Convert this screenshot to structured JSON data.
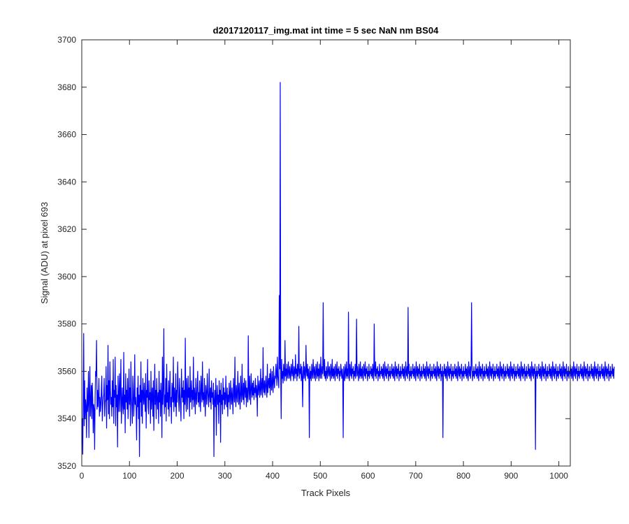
{
  "chart_data": {
    "type": "line",
    "title": "d2017120117_img.mat int time = 5 sec  NaN nm BS04",
    "xlabel": "Track Pixels",
    "ylabel": "Signal (ADU) at pixel 693",
    "xlim": [
      0,
      1024
    ],
    "ylim": [
      3520,
      3700
    ],
    "xticks": [
      "0",
      "100",
      "200",
      "300",
      "400",
      "500",
      "600",
      "700",
      "800",
      "900",
      "1000"
    ],
    "yticks": [
      "3520",
      "3540",
      "3560",
      "3580",
      "3600",
      "3620",
      "3640",
      "3660",
      "3680",
      "3700"
    ],
    "grid": false,
    "line_color": "#0000ff",
    "series": [
      {
        "values": [
          3540,
          3525,
          3549,
          3576,
          3537,
          3556,
          3540,
          3548,
          3545,
          3532,
          3553,
          3543,
          3547,
          3560,
          3532,
          3550,
          3562,
          3541,
          3547,
          3554,
          3540,
          3555,
          3548,
          3534,
          3546,
          3544,
          3527,
          3549,
          3560,
          3558,
          3573,
          3544,
          3552,
          3545,
          3550,
          3557,
          3541,
          3549,
          3543,
          3546,
          3552,
          3558,
          3539,
          3545,
          3549,
          3550,
          3557,
          3541,
          3547,
          3548,
          3562,
          3536,
          3554,
          3548,
          3571,
          3542,
          3556,
          3540,
          3564,
          3552,
          3546,
          3549,
          3541,
          3556,
          3545,
          3565,
          3538,
          3552,
          3549,
          3566,
          3537,
          3554,
          3545,
          3550,
          3528,
          3558,
          3543,
          3549,
          3559,
          3543,
          3552,
          3565,
          3538,
          3546,
          3553,
          3545,
          3542,
          3568,
          3544,
          3550,
          3534,
          3559,
          3547,
          3552,
          3544,
          3557,
          3540,
          3548,
          3561,
          3546,
          3553,
          3537,
          3564,
          3549,
          3545,
          3538,
          3558,
          3552,
          3541,
          3547,
          3567,
          3546,
          3549,
          3543,
          3531,
          3553,
          3545,
          3558,
          3540,
          3550,
          3524,
          3554,
          3547,
          3564,
          3541,
          3552,
          3538,
          3557,
          3550,
          3546,
          3555,
          3548,
          3543,
          3559,
          3536,
          3552,
          3549,
          3565,
          3545,
          3542,
          3556,
          3548,
          3551,
          3538,
          3560,
          3544,
          3549,
          3553,
          3541,
          3556,
          3535,
          3548,
          3563,
          3546,
          3552,
          3540,
          3557,
          3549,
          3544,
          3551,
          3538,
          3560,
          3547,
          3552,
          3541,
          3555,
          3549,
          3532,
          3566,
          3546,
          3553,
          3578,
          3542,
          3550,
          3545,
          3557,
          3539,
          3563,
          3547,
          3551,
          3544,
          3556,
          3541,
          3552,
          3560,
          3545,
          3549,
          3538,
          3555,
          3551,
          3547,
          3566,
          3543,
          3553,
          3549,
          3545,
          3559,
          3541,
          3552,
          3547,
          3564,
          3554,
          3548,
          3543,
          3557,
          3550,
          3545,
          3539,
          3561,
          3549,
          3553,
          3547,
          3556,
          3540,
          3552,
          3546,
          3574,
          3548,
          3543,
          3557,
          3551,
          3544,
          3558,
          3549,
          3553,
          3541,
          3562,
          3547,
          3550,
          3556,
          3544,
          3552,
          3548,
          3566,
          3545,
          3553,
          3550,
          3542,
          3557,
          3549,
          3546,
          3554,
          3560,
          3547,
          3551,
          3545,
          3556,
          3549,
          3543,
          3558,
          3552,
          3547,
          3564,
          3548,
          3551,
          3545,
          3557,
          3549,
          3541,
          3554,
          3550,
          3546,
          3559,
          3552,
          3548,
          3545,
          3561,
          3550,
          3547,
          3553,
          3544,
          3556,
          3549,
          3551,
          3546,
          3555,
          3524,
          3548,
          3552,
          3545,
          3557,
          3533,
          3549,
          3554,
          3546,
          3550,
          3538,
          3556,
          3547,
          3552,
          3530,
          3555,
          3546,
          3550,
          3542,
          3557,
          3548,
          3553,
          3544,
          3551,
          3546,
          3558,
          3549,
          3545,
          3553,
          3541,
          3550,
          3547,
          3555,
          3549,
          3544,
          3556,
          3550,
          3546,
          3553,
          3548,
          3542,
          3557,
          3551,
          3547,
          3566,
          3549,
          3545,
          3554,
          3550,
          3547,
          3560,
          3552,
          3546,
          3555,
          3549,
          3544,
          3558,
          3551,
          3547,
          3563,
          3550,
          3548,
          3555,
          3546,
          3557,
          3552,
          3549,
          3556,
          3545,
          3553,
          3550,
          3547,
          3575,
          3552,
          3548,
          3558,
          3551,
          3546,
          3559,
          3553,
          3549,
          3555,
          3550,
          3556,
          3548,
          3553,
          3551,
          3557,
          3549,
          3554,
          3552,
          3541,
          3558,
          3550,
          3553,
          3556,
          3549,
          3552,
          3561,
          3550,
          3554,
          3557,
          3549,
          3570,
          3553,
          3551,
          3556,
          3550,
          3554,
          3558,
          3552,
          3549,
          3563,
          3551,
          3555,
          3557,
          3553,
          3559,
          3550,
          3561,
          3554,
          3552,
          3560,
          3555,
          3551,
          3562,
          3556,
          3553,
          3558,
          3557,
          3563,
          3559,
          3554,
          3566,
          3558,
          3556,
          3553,
          3592,
          3561,
          3682,
          3558,
          3540,
          3565,
          3557,
          3560,
          3555,
          3563,
          3559,
          3556,
          3573,
          3558,
          3561,
          3556,
          3563,
          3559,
          3557,
          3564,
          3560,
          3557,
          3562,
          3559,
          3556,
          3563,
          3560,
          3558,
          3565,
          3559,
          3556,
          3562,
          3560,
          3557,
          3567,
          3559,
          3561,
          3556,
          3563,
          3558,
          3560,
          3579,
          3557,
          3561,
          3559,
          3563,
          3556,
          3562,
          3558,
          3545,
          3560,
          3564,
          3557,
          3562,
          3559,
          3556,
          3571,
          3560,
          3558,
          3563,
          3557,
          3561,
          3559,
          3532,
          3562,
          3557,
          3560,
          3556,
          3563,
          3559,
          3557,
          3565,
          3560,
          3557,
          3562,
          3559,
          3556,
          3563,
          3560,
          3557,
          3564,
          3558,
          3561,
          3556,
          3563,
          3559,
          3557,
          3566,
          3560,
          3557,
          3562,
          3559,
          3589,
          3561,
          3558,
          3565,
          3557,
          3560,
          3556,
          3562,
          3559,
          3557,
          3564,
          3560,
          3558,
          3562,
          3559,
          3556,
          3563,
          3560,
          3557,
          3565,
          3558,
          3561,
          3557,
          3562,
          3559,
          3556,
          3563,
          3560,
          3558,
          3564,
          3557,
          3561,
          3559,
          3562,
          3556,
          3560,
          3558,
          3563,
          3560,
          3557,
          3561,
          3558,
          3532,
          3562,
          3559,
          3556,
          3563,
          3560,
          3557,
          3564,
          3558,
          3561,
          3557,
          3585,
          3559,
          3556,
          3563,
          3560,
          3558,
          3564,
          3557,
          3561,
          3559,
          3562,
          3556,
          3560,
          3558,
          3563,
          3557,
          3560,
          3582,
          3558,
          3562,
          3559,
          3556,
          3563,
          3560,
          3557,
          3564,
          3558,
          3561,
          3557,
          3562,
          3559,
          3556,
          3563,
          3560,
          3558,
          3564,
          3557,
          3561,
          3559,
          3562,
          3556,
          3560,
          3558,
          3563,
          3557,
          3560,
          3559,
          3562,
          3558,
          3561,
          3557,
          3563,
          3559,
          3556,
          3580,
          3560,
          3558,
          3564,
          3557,
          3561,
          3559,
          3562,
          3556,
          3560,
          3558,
          3563,
          3557,
          3560,
          3559,
          3562,
          3558,
          3561,
          3557,
          3563,
          3559,
          3556,
          3564,
          3560,
          3558,
          3562,
          3557,
          3561,
          3559,
          3563,
          3556,
          3560,
          3558,
          3562,
          3557,
          3560,
          3559,
          3563,
          3558,
          3561,
          3557,
          3562,
          3559,
          3556,
          3564,
          3560,
          3558,
          3562,
          3557,
          3561,
          3559,
          3563,
          3556,
          3560,
          3558,
          3562,
          3557,
          3560,
          3559,
          3563,
          3558,
          3561,
          3557,
          3562,
          3559,
          3556,
          3564,
          3560,
          3558,
          3562,
          3557,
          3587,
          3559,
          3563,
          3556,
          3560,
          3558,
          3562,
          3557,
          3560,
          3559,
          3563,
          3558,
          3561,
          3557,
          3562,
          3559,
          3556,
          3564,
          3560,
          3558,
          3562,
          3557,
          3561,
          3559,
          3563,
          3556,
          3560,
          3558,
          3562,
          3557,
          3560,
          3559,
          3563,
          3558,
          3561,
          3557,
          3562,
          3559,
          3556,
          3564,
          3560,
          3558,
          3562,
          3557,
          3561,
          3559,
          3563,
          3556,
          3560,
          3558,
          3562,
          3557,
          3560,
          3559,
          3563,
          3558,
          3561,
          3557,
          3562,
          3559,
          3556,
          3564,
          3560,
          3558,
          3562,
          3557,
          3561,
          3559,
          3563,
          3556,
          3560,
          3558,
          3562,
          3532,
          3560,
          3559,
          3563,
          3558,
          3561,
          3557,
          3562,
          3559,
          3556,
          3564,
          3560,
          3558,
          3562,
          3557,
          3561,
          3559,
          3563,
          3556,
          3560,
          3558,
          3562,
          3557,
          3560,
          3559,
          3563,
          3558,
          3561,
          3557,
          3562,
          3559,
          3556,
          3564,
          3560,
          3558,
          3562,
          3557,
          3561,
          3559,
          3563,
          3556,
          3560,
          3558,
          3562,
          3557,
          3560,
          3559,
          3563,
          3558,
          3561,
          3557,
          3562,
          3559,
          3556,
          3564,
          3560,
          3558,
          3562,
          3557,
          3561,
          3589,
          3563,
          3556,
          3560,
          3558,
          3562,
          3557,
          3560,
          3559,
          3563,
          3558,
          3561,
          3557,
          3562,
          3559,
          3556,
          3564,
          3560,
          3558,
          3562,
          3557,
          3561,
          3559,
          3563,
          3556,
          3560,
          3558,
          3562,
          3557,
          3560,
          3559,
          3563,
          3558,
          3561,
          3557,
          3562,
          3559,
          3556,
          3564,
          3560,
          3558,
          3562,
          3557,
          3561,
          3559,
          3563,
          3556,
          3560,
          3558,
          3562,
          3557,
          3560,
          3559,
          3563,
          3558,
          3561,
          3557,
          3562,
          3559,
          3556,
          3564,
          3560,
          3558,
          3562,
          3557,
          3561,
          3559,
          3563,
          3556,
          3560,
          3558,
          3562,
          3557,
          3560,
          3559,
          3563,
          3558,
          3561,
          3557,
          3562,
          3559,
          3556,
          3564,
          3560,
          3558,
          3562,
          3557,
          3561,
          3559,
          3563,
          3556,
          3560,
          3558,
          3562,
          3557,
          3560,
          3559,
          3563,
          3558,
          3561,
          3557,
          3562,
          3559,
          3556,
          3564,
          3560,
          3558,
          3562,
          3557,
          3561,
          3559,
          3563,
          3556,
          3560,
          3558,
          3562,
          3557,
          3560,
          3559,
          3563,
          3558,
          3561,
          3557,
          3562,
          3559,
          3556,
          3564,
          3560,
          3558,
          3562,
          3557,
          3561,
          3559,
          3563,
          3527,
          3560,
          3558,
          3562,
          3557,
          3560,
          3559,
          3563,
          3558,
          3561,
          3557,
          3562,
          3559,
          3556,
          3564,
          3560,
          3558,
          3562,
          3557,
          3561,
          3559,
          3563,
          3556,
          3560,
          3558,
          3562,
          3557,
          3560,
          3559,
          3563,
          3558,
          3561,
          3557,
          3562,
          3559,
          3556,
          3564,
          3560,
          3558,
          3562,
          3557,
          3561,
          3559,
          3563,
          3556,
          3560,
          3558,
          3562,
          3557,
          3560,
          3559,
          3563,
          3558,
          3561,
          3557,
          3562,
          3559,
          3556,
          3564,
          3560,
          3558,
          3562,
          3557,
          3561,
          3559,
          3563,
          3556,
          3560,
          3558,
          3562,
          3557,
          3560,
          3559,
          3563,
          3558,
          3561,
          3557,
          3562,
          3559,
          3556,
          3564,
          3560,
          3558,
          3562,
          3557,
          3561,
          3559,
          3563,
          3556,
          3560,
          3558,
          3562,
          3557,
          3560,
          3559,
          3563,
          3558,
          3561,
          3557,
          3562,
          3559,
          3556,
          3564,
          3560,
          3558,
          3562,
          3557,
          3561,
          3559,
          3563,
          3556,
          3560,
          3558,
          3562,
          3557,
          3560,
          3559,
          3563,
          3558,
          3561,
          3557,
          3562,
          3559,
          3556,
          3564,
          3560,
          3558,
          3562,
          3557,
          3561,
          3559,
          3563,
          3556,
          3560,
          3558,
          3562,
          3557,
          3560,
          3559,
          3563,
          3558,
          3561,
          3557,
          3562,
          3559,
          3556,
          3564,
          3560,
          3558,
          3562,
          3557,
          3561,
          3559,
          3563,
          3556,
          3560,
          3558,
          3562,
          3557,
          3560,
          3559,
          3563,
          3558,
          3561,
          3557,
          3562
        ]
      }
    ]
  }
}
